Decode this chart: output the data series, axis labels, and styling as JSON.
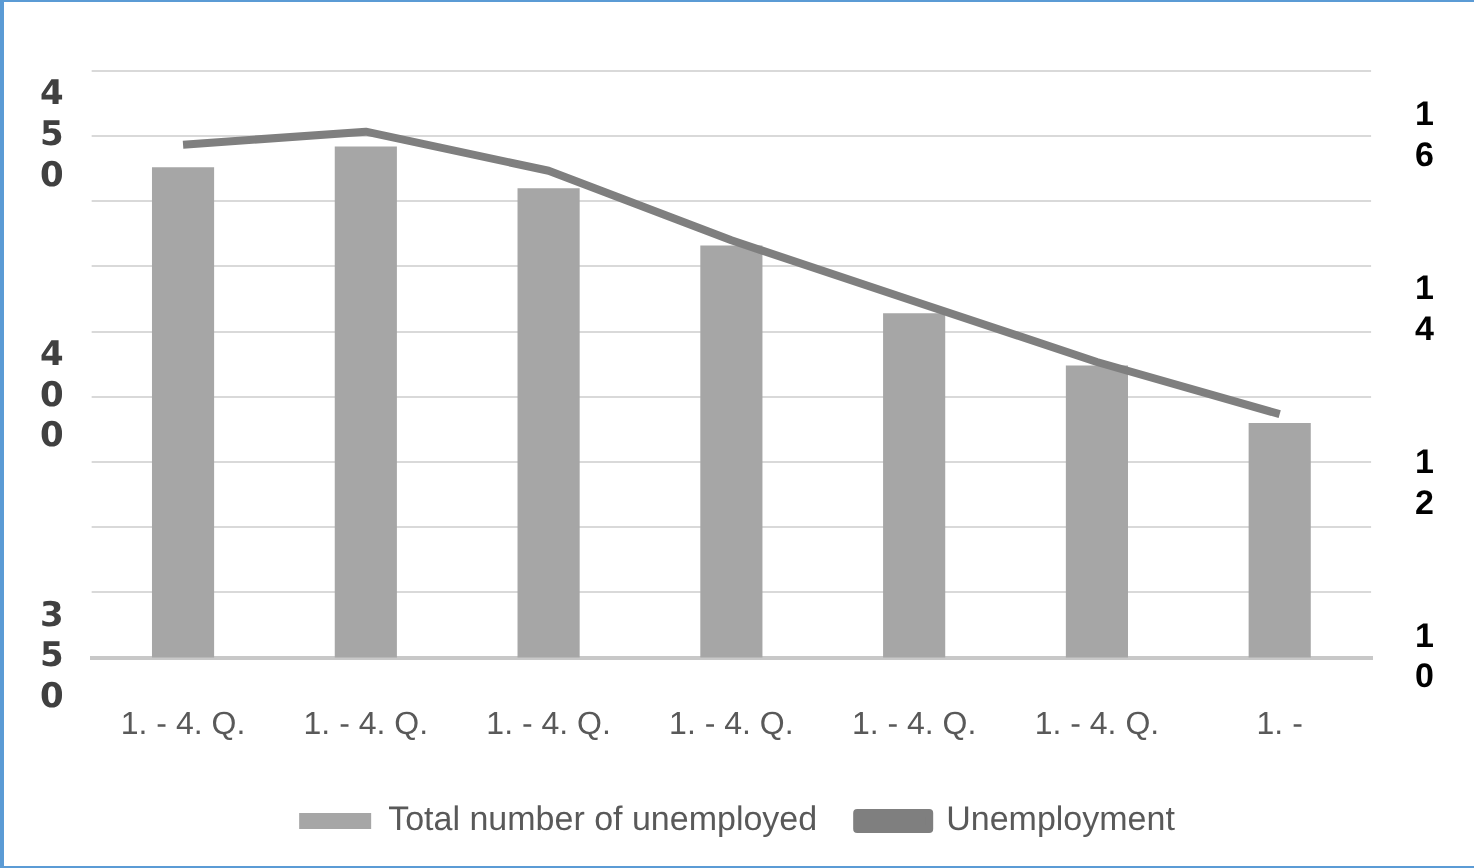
{
  "chart_data": {
    "type": "bar",
    "categories": [
      "1. - 4. Q.",
      "1. - 4. Q.",
      "1. - 4. Q.",
      "1. - 4. Q.",
      "1. - 4. Q.",
      "1. - 4. Q.",
      "1. -"
    ],
    "series": [
      {
        "name": "Total number of unemployed",
        "color": "#a6a6a6",
        "values": [
          444,
          448,
          440,
          429,
          416,
          406,
          395
        ]
      },
      {
        "name": "Unemployment",
        "type": "line",
        "axis": "y2",
        "color": "#7f7f7f",
        "values": [
          15.9,
          16.05,
          15.6,
          14.8,
          14.1,
          13.4,
          12.8
        ]
      }
    ],
    "ylim": [
      350,
      462.5
    ],
    "yticks": [
      350,
      {
        "value": 362.5,
        "label": null
      },
      {
        "value": 375,
        "label": null
      },
      {
        "value": 387.5,
        "label": null
      },
      400,
      {
        "value": 412.5,
        "label": null
      },
      {
        "value": 425,
        "label": null
      },
      {
        "value": 437.5,
        "label": null
      },
      450,
      {
        "value": 462.5,
        "label": null
      }
    ],
    "y2lim": [
      10,
      16.75
    ],
    "y2ticks": [
      10,
      12,
      14,
      16
    ],
    "grid": "y",
    "legend": "bottom",
    "marker": "none"
  }
}
